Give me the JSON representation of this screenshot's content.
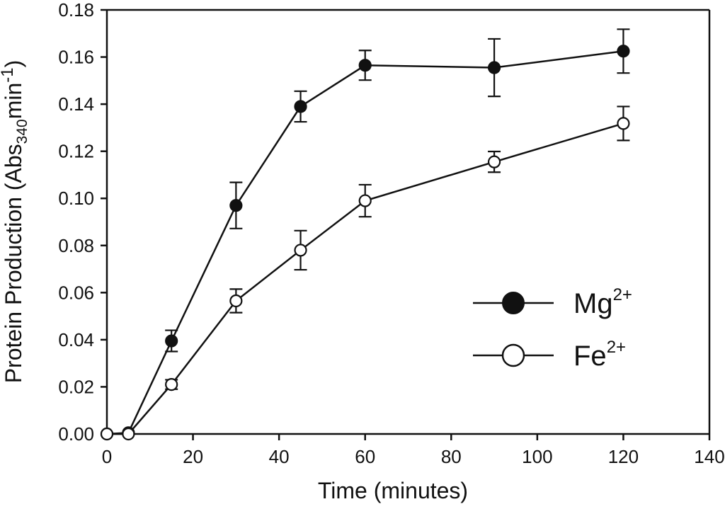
{
  "chart_data": {
    "type": "line",
    "title": "",
    "xlabel": "Time (minutes)",
    "ylabel": {
      "main": "Protein Production (Abs",
      "sub": "340",
      "unit": "min",
      "sup": "-1",
      "close": ")"
    },
    "xlim": [
      0,
      140
    ],
    "ylim": [
      0,
      0.18
    ],
    "xticks": [
      "0",
      "20",
      "40",
      "60",
      "80",
      "100",
      "120",
      "140"
    ],
    "yticks": [
      "0.00",
      "0.02",
      "0.04",
      "0.06",
      "0.08",
      "0.10",
      "0.12",
      "0.14",
      "0.16",
      "0.18"
    ],
    "grid": false,
    "legend_position": "center-right",
    "series": [
      {
        "name": "Mg",
        "name_sup": "2+",
        "marker": "filled-circle",
        "color": "#111111",
        "x": [
          0,
          5,
          15,
          30,
          45,
          60,
          90,
          120
        ],
        "y": [
          0.0,
          0.0005,
          0.0395,
          0.097,
          0.139,
          0.1565,
          0.1555,
          0.1625
        ],
        "err": [
          0,
          0,
          0.0045,
          0.0098,
          0.0065,
          0.0063,
          0.0122,
          0.0093
        ]
      },
      {
        "name": "Fe",
        "name_sup": "2+",
        "marker": "open-circle",
        "color": "#111111",
        "x": [
          0,
          5,
          15,
          30,
          45,
          60,
          90,
          120
        ],
        "y": [
          0.0,
          0.0,
          0.021,
          0.0565,
          0.078,
          0.099,
          0.1155,
          0.1318
        ],
        "err": [
          0,
          0,
          0.002,
          0.005,
          0.0083,
          0.0068,
          0.0044,
          0.0072
        ]
      }
    ]
  }
}
